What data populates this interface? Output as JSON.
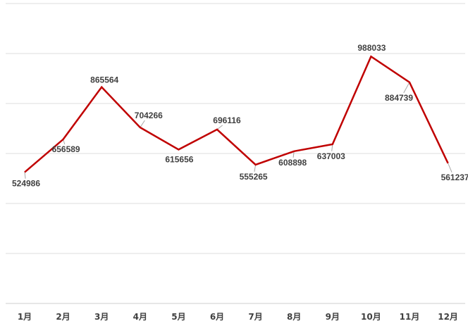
{
  "chart_data": {
    "type": "line",
    "categories": [
      "1月",
      "2月",
      "3月",
      "4月",
      "5月",
      "6月",
      "7月",
      "8月",
      "9月",
      "10月",
      "11月",
      "12月"
    ],
    "series": [
      {
        "values": [
          524986,
          656589,
          865564,
          704266,
          615656,
          696116,
          555265,
          608898,
          637003,
          988033,
          884739,
          561237
        ]
      }
    ],
    "data_labels": [
      "524986",
      "656589",
      "865564",
      "704266",
      "615656",
      "696116",
      "555265",
      "608898",
      "637003",
      "988033",
      "884739",
      "561237"
    ],
    "title": "",
    "xlabel": "",
    "ylabel": "",
    "ylim": [
      0,
      1200000
    ],
    "grid": true,
    "legend": "none",
    "line_color": "#c00000"
  }
}
